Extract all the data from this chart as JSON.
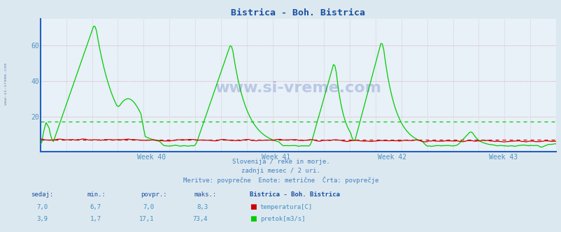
{
  "title": "Bistrica - Boh. Bistrica",
  "bg_color": "#dce8f0",
  "plot_bg_color": "#e8f0f8",
  "grid_color_h": "#d09090",
  "grid_color_v": "#c8b8b8",
  "tick_color": "#5090c0",
  "title_color": "#1850a0",
  "text_color": "#4080c0",
  "border_left_color": "#2060c0",
  "border_bottom_color": "#2060c0",
  "ylim": [
    0,
    75
  ],
  "yticks": [
    20,
    40,
    60
  ],
  "week_labels": [
    "Week 40",
    "Week 41",
    "Week 42",
    "Week 43"
  ],
  "temp_color": "#cc0000",
  "flow_color": "#00cc00",
  "avg_temp_val": 7.0,
  "avg_flow_val": 17.1,
  "watermark": "www.si-vreme.com",
  "subtitle1": "Slovenija / reke in morje.",
  "subtitle2": "zadnji mesec / 2 uri.",
  "subtitle3": "Meritve: povprečne  Enote: metrične  Črta: povprečje",
  "label_sedaj": "sedaj:",
  "label_min": "min.:",
  "label_povpr": "povpr.:",
  "label_maks": "maks.:",
  "label_station": "Bistrica - Boh. Bistrica",
  "temp_sedaj": "7,0",
  "temp_min": "6,7",
  "temp_povpr": "7,0",
  "temp_maks": "8,3",
  "flow_sedaj": "3,9",
  "flow_min": "1,7",
  "flow_povpr": "17,1",
  "flow_maks": "73,4",
  "temp_label": "temperatura[C]",
  "flow_label": "pretok[m3/s]",
  "n_points": 360
}
